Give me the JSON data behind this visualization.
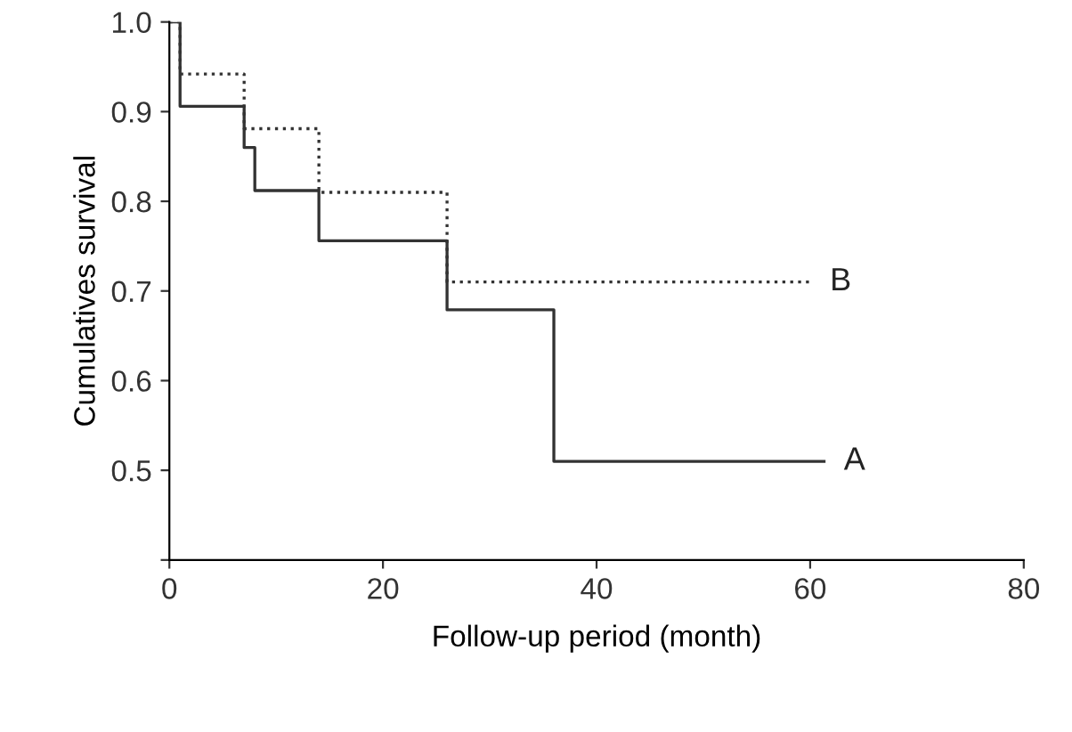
{
  "chart_data": {
    "type": "step",
    "xlabel": "Follow-up period (month)",
    "ylabel": "Cumulatives survival",
    "xlim": [
      0,
      80
    ],
    "xticks": [
      0,
      20,
      40,
      60,
      80
    ],
    "ylim": [
      0.4,
      1.0
    ],
    "yticks": [
      {
        "value": 0.4,
        "label": null
      },
      0.5,
      0.6,
      0.7,
      0.8,
      0.9,
      {
        "value": 1,
        "label": "1.0"
      }
    ],
    "grid": false,
    "legend": false,
    "marker": "none",
    "series": [
      {
        "color": "#333333",
        "line_style": "solid",
        "x": [
          0,
          1,
          7,
          8,
          14,
          26,
          36,
          61.3
        ],
        "values": [
          1.0,
          0.906,
          0.86,
          0.812,
          0.756,
          0.679,
          0.51,
          0.51
        ]
      },
      {
        "color": "#333333",
        "line_style": "dotted",
        "x": [
          0,
          1,
          7,
          14,
          26,
          60
        ],
        "values": [
          1.0,
          0.942,
          0.881,
          0.81,
          0.71,
          0.71
        ]
      }
    ],
    "annotations": [
      {
        "text": "A",
        "x": 61.3,
        "y": 0.51
      },
      {
        "text": "B",
        "x": 60,
        "y": 0.71
      }
    ]
  }
}
